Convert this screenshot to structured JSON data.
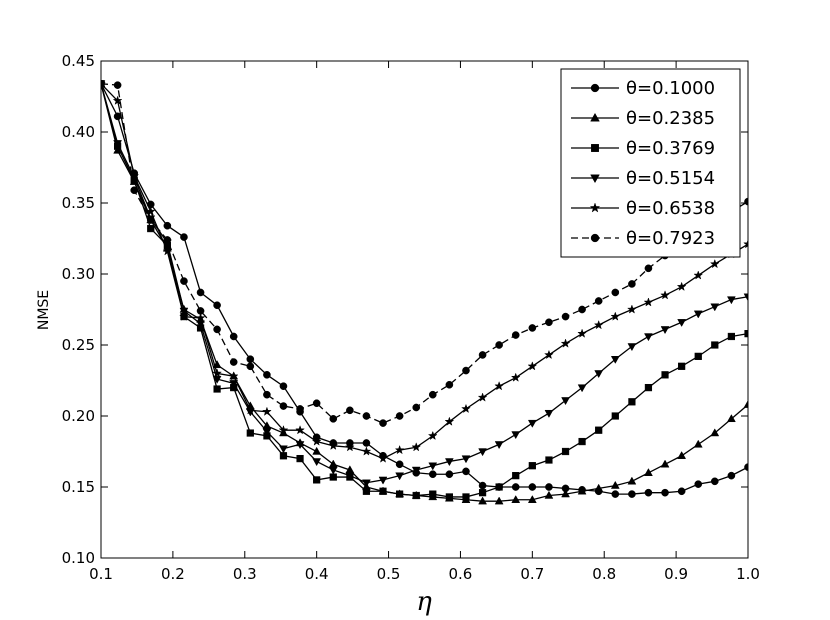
{
  "chart_data": {
    "type": "line",
    "xlabel": "η",
    "ylabel": "NMSE",
    "xlim": [
      0.1,
      1.0
    ],
    "ylim": [
      0.1,
      0.45
    ],
    "xticks": [
      "0.1",
      "0.2",
      "0.3",
      "0.4",
      "0.5",
      "0.6",
      "0.7",
      "0.8",
      "0.9",
      "1.0"
    ],
    "yticks": [
      "0.10",
      "0.15",
      "0.20",
      "0.25",
      "0.30",
      "0.35",
      "0.40",
      "0.45"
    ],
    "grid": false,
    "legend_position": "top-right",
    "x": [
      0.1,
      0.1231,
      0.1462,
      0.1692,
      0.1923,
      0.2154,
      0.2385,
      0.2615,
      0.2846,
      0.3077,
      0.3308,
      0.3538,
      0.3769,
      0.4,
      0.4231,
      0.4462,
      0.4692,
      0.4923,
      0.5154,
      0.5385,
      0.5615,
      0.5846,
      0.6077,
      0.6308,
      0.6538,
      0.6769,
      0.7,
      0.7231,
      0.7462,
      0.7692,
      0.7923,
      0.8154,
      0.8385,
      0.8615,
      0.8846,
      0.9077,
      0.9308,
      0.9538,
      0.9769,
      1.0
    ],
    "series": [
      {
        "name": "θ=0.1000",
        "marker": "circle",
        "dash": "solid",
        "values": [
          0.434,
          0.411,
          0.371,
          0.349,
          0.334,
          0.326,
          0.287,
          0.278,
          0.256,
          0.24,
          0.229,
          0.221,
          0.203,
          0.185,
          0.181,
          0.181,
          0.181,
          0.172,
          0.166,
          0.16,
          0.159,
          0.159,
          0.161,
          0.151,
          0.15,
          0.15,
          0.15,
          0.15,
          0.149,
          0.148,
          0.147,
          0.145,
          0.145,
          0.146,
          0.146,
          0.147,
          0.152,
          0.154,
          0.158,
          0.164
        ]
      },
      {
        "name": "θ=0.2385",
        "marker": "triangle-up",
        "dash": "solid",
        "values": [
          0.434,
          0.387,
          0.365,
          0.338,
          0.318,
          0.275,
          0.268,
          0.236,
          0.228,
          0.207,
          0.193,
          0.188,
          0.181,
          0.175,
          0.166,
          0.162,
          0.15,
          0.147,
          0.145,
          0.144,
          0.143,
          0.142,
          0.141,
          0.14,
          0.14,
          0.141,
          0.141,
          0.144,
          0.145,
          0.147,
          0.149,
          0.151,
          0.154,
          0.16,
          0.166,
          0.172,
          0.18,
          0.188,
          0.198,
          0.208
        ]
      },
      {
        "name": "θ=0.3769",
        "marker": "square",
        "dash": "solid",
        "values": [
          0.434,
          0.39,
          0.366,
          0.332,
          0.32,
          0.27,
          0.262,
          0.219,
          0.22,
          0.188,
          0.186,
          0.172,
          0.17,
          0.155,
          0.157,
          0.157,
          0.147,
          0.147,
          0.145,
          0.144,
          0.145,
          0.143,
          0.143,
          0.146,
          0.15,
          0.158,
          0.165,
          0.169,
          0.175,
          0.182,
          0.19,
          0.2,
          0.21,
          0.22,
          0.229,
          0.235,
          0.242,
          0.25,
          0.256,
          0.258
        ]
      },
      {
        "name": "θ=0.5154",
        "marker": "triangle-down",
        "dash": "solid",
        "values": [
          0.434,
          0.392,
          0.368,
          0.339,
          0.322,
          0.274,
          0.265,
          0.226,
          0.223,
          0.203,
          0.189,
          0.177,
          0.18,
          0.168,
          0.162,
          0.158,
          0.153,
          0.155,
          0.158,
          0.162,
          0.165,
          0.168,
          0.17,
          0.175,
          0.18,
          0.187,
          0.195,
          0.202,
          0.211,
          0.22,
          0.23,
          0.24,
          0.249,
          0.256,
          0.261,
          0.266,
          0.272,
          0.277,
          0.282,
          0.284
        ]
      },
      {
        "name": "θ=0.6538",
        "marker": "star",
        "dash": "solid",
        "values": [
          0.434,
          0.422,
          0.369,
          0.344,
          0.316,
          0.27,
          0.269,
          0.23,
          0.228,
          0.204,
          0.203,
          0.19,
          0.19,
          0.182,
          0.179,
          0.178,
          0.175,
          0.17,
          0.176,
          0.178,
          0.186,
          0.196,
          0.205,
          0.213,
          0.221,
          0.227,
          0.235,
          0.243,
          0.251,
          0.258,
          0.264,
          0.27,
          0.275,
          0.28,
          0.285,
          0.291,
          0.299,
          0.307,
          0.314,
          0.321
        ]
      },
      {
        "name": "θ=0.7923",
        "marker": "circle",
        "dash": "dashed",
        "values": [
          0.434,
          0.433,
          0.359,
          0.338,
          0.324,
          0.295,
          0.274,
          0.261,
          0.238,
          0.235,
          0.215,
          0.207,
          0.205,
          0.209,
          0.198,
          0.204,
          0.2,
          0.195,
          0.2,
          0.206,
          0.215,
          0.222,
          0.232,
          0.243,
          0.25,
          0.257,
          0.262,
          0.266,
          0.27,
          0.275,
          0.281,
          0.287,
          0.293,
          0.304,
          0.313,
          0.321,
          0.329,
          0.336,
          0.344,
          0.351
        ]
      }
    ]
  }
}
